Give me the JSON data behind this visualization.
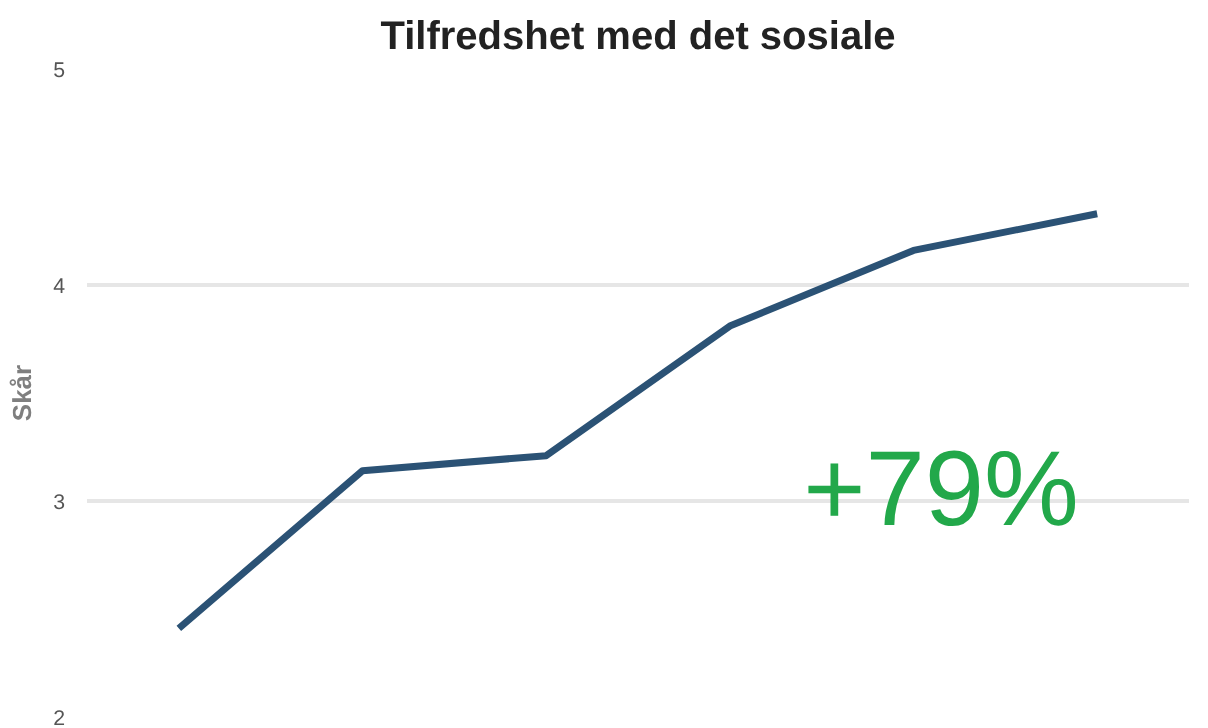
{
  "chart_data": {
    "type": "line",
    "title": "Tilfredshet med det sosiale",
    "ylabel": "Skår",
    "categories": [
      null,
      null,
      null,
      null,
      null,
      null
    ],
    "series": [
      {
        "color": "#2b5275",
        "values": [
          2.41,
          3.14,
          3.21,
          3.81,
          4.16,
          4.33
        ]
      }
    ],
    "ylim": [
      2,
      5
    ],
    "yticks": [
      2,
      3,
      4,
      5
    ],
    "grid": "y",
    "marker": "none",
    "line_style": "solid",
    "annotations": [
      "+79%"
    ]
  }
}
